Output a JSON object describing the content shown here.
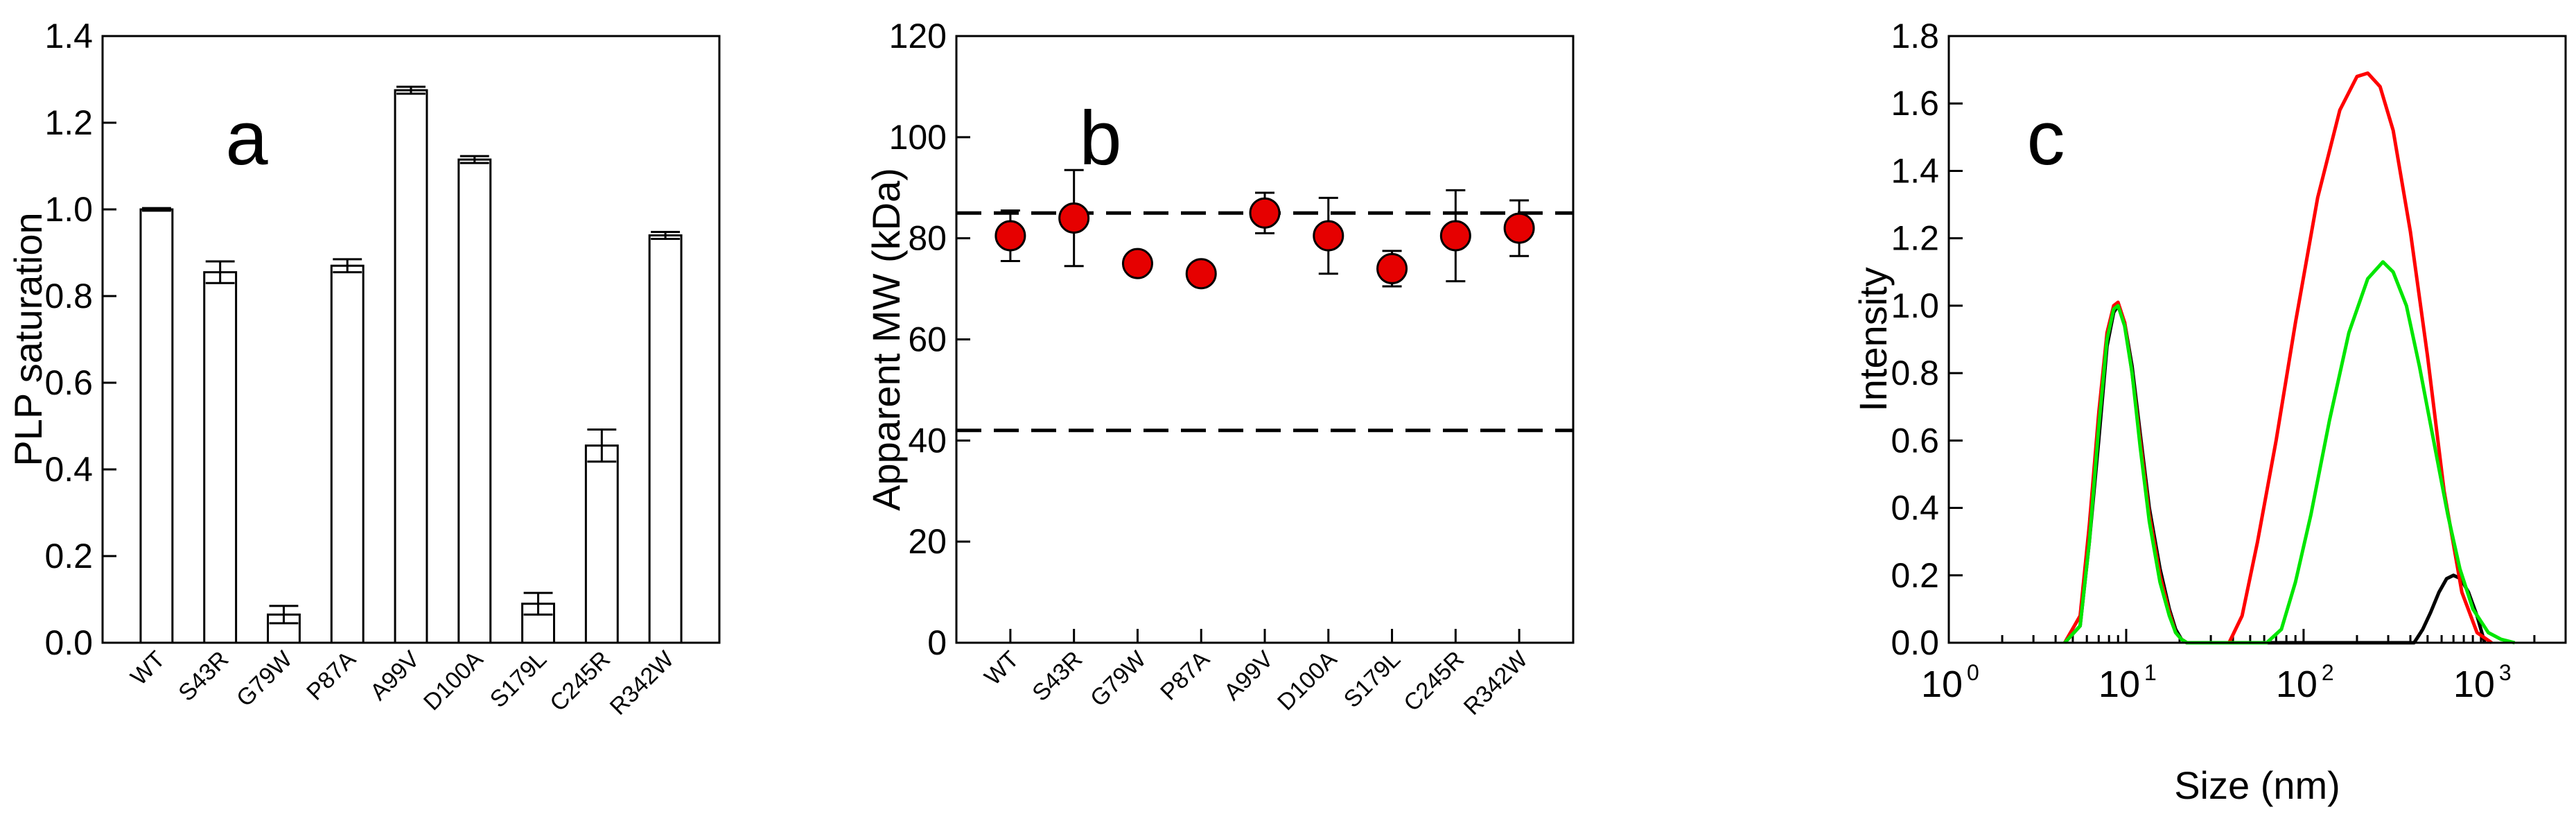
{
  "chart_data": [
    {
      "panel": "a",
      "type": "bar",
      "ylabel": "PLP saturation",
      "xlabel": "",
      "ylim": [
        0,
        1.4
      ],
      "yticks": [
        0.0,
        0.2,
        0.4,
        0.6,
        0.8,
        1.0,
        1.2,
        1.4
      ],
      "ytick_labels": [
        "0.0",
        "0.2",
        "0.4",
        "0.6",
        "0.8",
        "1.0",
        "1.2",
        "1.4"
      ],
      "categories": [
        "WT",
        "S43R",
        "G79W",
        "P87A",
        "A99V",
        "D100A",
        "S179L",
        "C245R",
        "R342W"
      ],
      "values": [
        1.0,
        0.855,
        0.065,
        0.87,
        1.275,
        1.115,
        0.09,
        0.455,
        0.94
      ],
      "errors": [
        0.003,
        0.025,
        0.02,
        0.015,
        0.008,
        0.008,
        0.025,
        0.037,
        0.008
      ],
      "bar_fill": "#ffffff",
      "bar_stroke": "#000000"
    },
    {
      "panel": "b",
      "type": "scatter",
      "ylabel": "Apparent MW (kDa)",
      "xlabel": "",
      "ylim": [
        0,
        120
      ],
      "yticks": [
        0,
        20,
        40,
        60,
        80,
        100,
        120
      ],
      "ytick_labels": [
        "0",
        "20",
        "40",
        "60",
        "80",
        "100",
        "120"
      ],
      "categories": [
        "WT",
        "S43R",
        "G79W",
        "P87A",
        "A99V",
        "D100A",
        "S179L",
        "C245R",
        "R342W"
      ],
      "values": [
        80.5,
        84,
        75,
        73,
        85,
        80.5,
        74,
        80.5,
        82
      ],
      "errors": [
        5,
        9.5,
        0,
        0,
        4,
        7.5,
        3.5,
        9,
        5.5
      ],
      "reference_lines": [
        85,
        42
      ],
      "marker_color": "#e60000"
    },
    {
      "panel": "c",
      "type": "line",
      "xlabel": "Size (nm)",
      "ylabel": "Intensity",
      "xscale": "log",
      "xlim": [
        1,
        3000
      ],
      "ylim": [
        0,
        1.8
      ],
      "yticks": [
        0.0,
        0.2,
        0.4,
        0.6,
        0.8,
        1.0,
        1.2,
        1.4,
        1.6,
        1.8
      ],
      "ytick_labels": [
        "0.0",
        "0.2",
        "0.4",
        "0.6",
        "0.8",
        "1.0",
        "1.2",
        "1.4",
        "1.6",
        "1.8"
      ],
      "xticks": [
        1,
        10,
        100,
        1000
      ],
      "xtick_bases": [
        "10",
        "10",
        "10",
        "10"
      ],
      "xtick_exponents": [
        "0",
        "1",
        "2",
        "3"
      ],
      "series": [
        {
          "name": "black",
          "color": "#000000",
          "x": [
            4.5,
            5.5,
            6.2,
            7,
            7.8,
            8.5,
            9,
            9.8,
            10.8,
            12,
            13.5,
            15.5,
            17.5,
            19,
            20.5,
            22,
            420,
            470,
            520,
            580,
            640,
            700,
            770,
            850,
            950,
            1050
          ],
          "y": [
            0,
            0.05,
            0.3,
            0.6,
            0.88,
            0.98,
            1.0,
            0.95,
            0.82,
            0.62,
            0.4,
            0.22,
            0.1,
            0.04,
            0.01,
            0,
            0,
            0.04,
            0.09,
            0.15,
            0.19,
            0.2,
            0.19,
            0.15,
            0.08,
            0
          ]
        },
        {
          "name": "red",
          "color": "#ff0000",
          "x": [
            4.5,
            5.5,
            6.2,
            7,
            7.8,
            8.5,
            9,
            9.8,
            10.8,
            12,
            13.5,
            15.5,
            17.5,
            19,
            20.5,
            22,
            38,
            45,
            55,
            70,
            90,
            120,
            160,
            200,
            230,
            270,
            320,
            400,
            500,
            620,
            780,
            950,
            1150
          ],
          "y": [
            0,
            0.08,
            0.35,
            0.68,
            0.92,
            1.0,
            1.01,
            0.95,
            0.8,
            0.6,
            0.38,
            0.2,
            0.09,
            0.03,
            0.01,
            0,
            0,
            0.08,
            0.3,
            0.6,
            0.95,
            1.32,
            1.58,
            1.68,
            1.69,
            1.65,
            1.52,
            1.22,
            0.85,
            0.45,
            0.15,
            0.03,
            0
          ]
        },
        {
          "name": "green",
          "color": "#00e600",
          "x": [
            4.5,
            5.5,
            6.2,
            7,
            7.8,
            8.5,
            9,
            9.8,
            10.8,
            12,
            13.5,
            15.5,
            17.5,
            19,
            20.5,
            22,
            62,
            75,
            90,
            110,
            140,
            180,
            230,
            280,
            320,
            380,
            450,
            550,
            650,
            760,
            900,
            1100,
            1300,
            1550
          ],
          "y": [
            0,
            0.05,
            0.3,
            0.64,
            0.9,
            0.99,
            1.0,
            0.94,
            0.8,
            0.58,
            0.36,
            0.18,
            0.08,
            0.03,
            0.01,
            0,
            0,
            0.04,
            0.18,
            0.38,
            0.66,
            0.92,
            1.08,
            1.13,
            1.1,
            1.0,
            0.82,
            0.58,
            0.38,
            0.22,
            0.1,
            0.03,
            0.01,
            0
          ]
        }
      ]
    }
  ]
}
